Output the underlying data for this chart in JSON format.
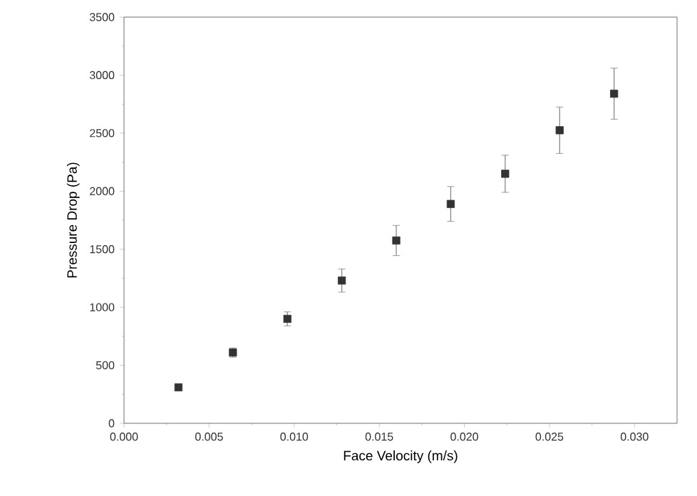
{
  "chart_data": {
    "type": "scatter",
    "xlabel": "Face Velocity (m/s)",
    "ylabel": "Pressure Drop (Pa)",
    "x": [
      0.0032,
      0.0064,
      0.0096,
      0.0128,
      0.016,
      0.0192,
      0.0224,
      0.0256,
      0.0288
    ],
    "values": [
      310,
      610,
      900,
      1230,
      1575,
      1890,
      2150,
      2525,
      2840
    ],
    "errors": [
      20,
      40,
      60,
      100,
      130,
      150,
      160,
      200,
      220
    ],
    "color": "#333333",
    "marker": "square",
    "xlim": [
      0,
      0.0325
    ],
    "xticks": [
      {
        "value": 0,
        "label": "0.000"
      },
      {
        "value": 0.005,
        "label": "0.005"
      },
      {
        "value": 0.01,
        "label": "0.010"
      },
      {
        "value": 0.015,
        "label": "0.015"
      },
      {
        "value": 0.02,
        "label": "0.020"
      },
      {
        "value": 0.025,
        "label": "0.025"
      },
      {
        "value": 0.03,
        "label": "0.030"
      }
    ],
    "ylim": [
      0,
      3500
    ],
    "yticks": [
      0,
      500,
      1000,
      1500,
      2000,
      2500,
      3000,
      3500
    ]
  }
}
